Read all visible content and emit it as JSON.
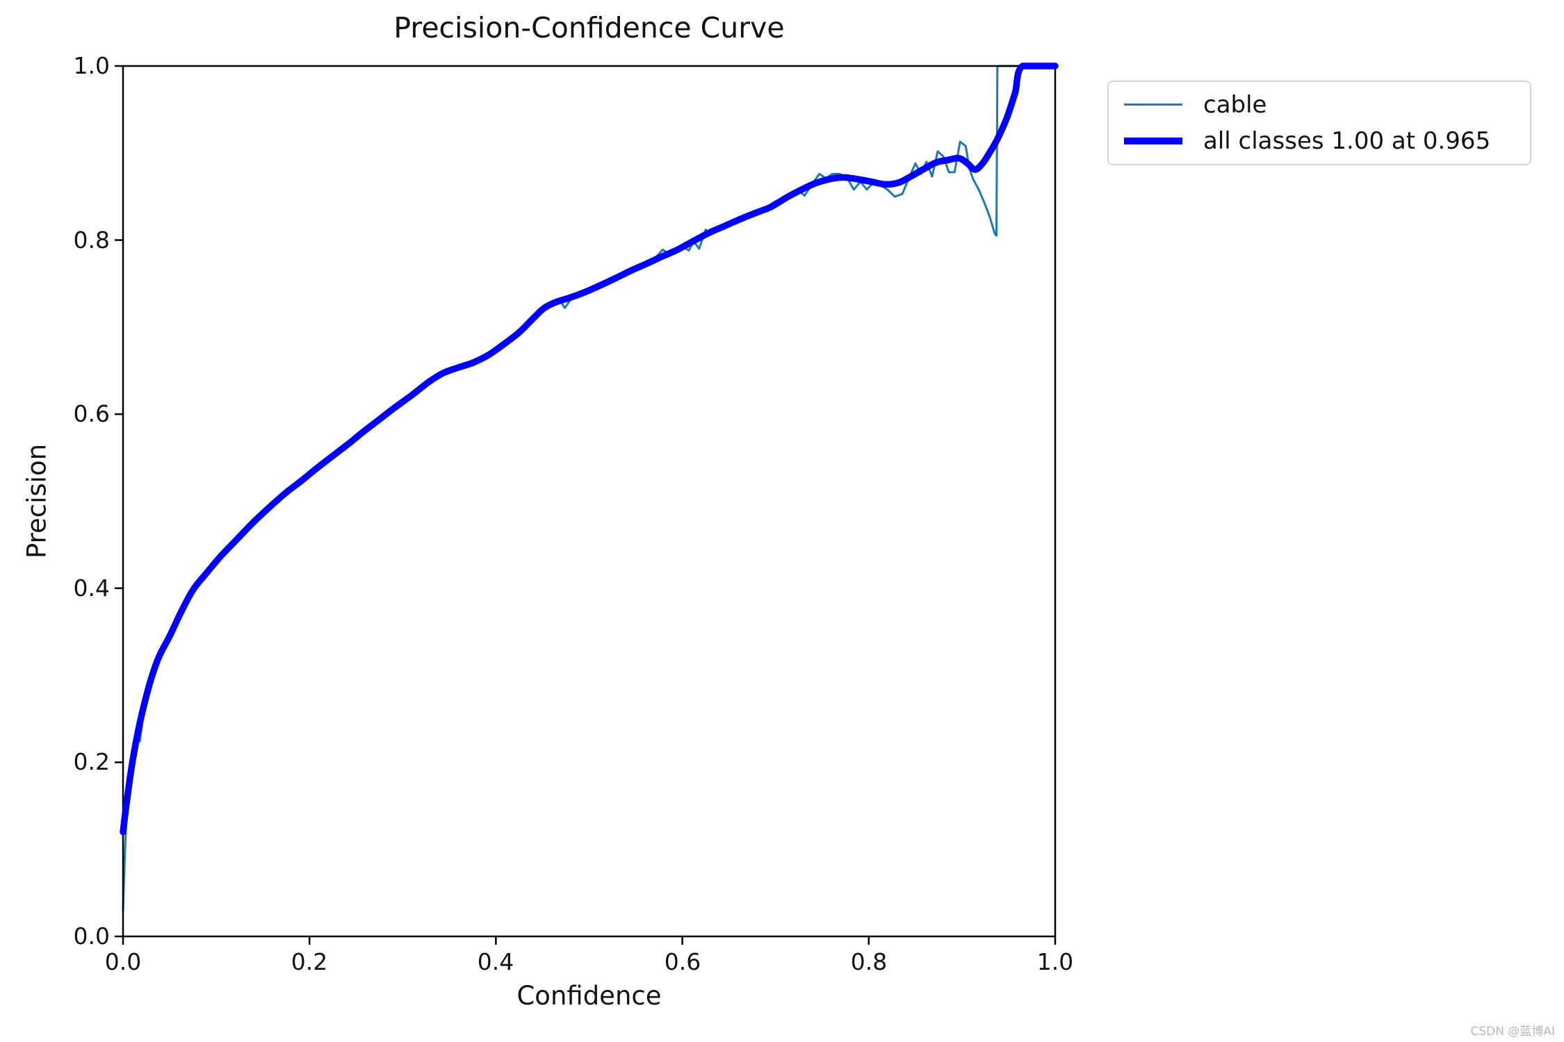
{
  "title": "Precision-Confidence Curve",
  "axes": {
    "xlabel": "Confidence",
    "ylabel": "Precision"
  },
  "legend": {
    "items": [
      {
        "label": "cable",
        "color": "#1f77b4",
        "swatch_thickness": 3
      },
      {
        "label": "all classes 1.00 at 0.965",
        "color": "#0000ff",
        "swatch_thickness": 10
      }
    ]
  },
  "watermark": "CSDN @蓝博AI",
  "chart_data": {
    "type": "line",
    "title": "Precision-Confidence Curve",
    "xlabel": "Confidence",
    "ylabel": "Precision",
    "xlim": [
      0.0,
      1.0
    ],
    "ylim": [
      0.0,
      1.0
    ],
    "grid": false,
    "legend_position": "outside-upper-right",
    "x_tick_labels": [
      "0.0",
      "0.2",
      "0.4",
      "0.6",
      "0.8",
      "1.0"
    ],
    "y_tick_labels": [
      "0.0",
      "0.2",
      "0.4",
      "0.6",
      "0.8",
      "1.0"
    ],
    "x_tick_values": [
      0.0,
      0.2,
      0.4,
      0.6,
      0.8,
      1.0
    ],
    "y_tick_values": [
      0.0,
      0.2,
      0.4,
      0.6,
      0.8,
      1.0
    ],
    "series": [
      {
        "name": "cable",
        "color": "#1f77b4",
        "width": 3,
        "smooth": false,
        "layer": "below-axes",
        "points": [
          [
            0.0,
            0.03
          ],
          [
            0.002,
            0.095
          ],
          [
            0.004,
            0.15
          ],
          [
            0.007,
            0.185
          ],
          [
            0.01,
            0.212
          ],
          [
            0.014,
            0.232
          ],
          [
            0.018,
            0.224
          ],
          [
            0.022,
            0.256
          ],
          [
            0.027,
            0.278
          ],
          [
            0.032,
            0.296
          ],
          [
            0.037,
            0.312
          ],
          [
            0.043,
            0.33
          ],
          [
            0.05,
            0.347
          ],
          [
            0.058,
            0.365
          ],
          [
            0.066,
            0.383
          ],
          [
            0.074,
            0.398
          ],
          [
            0.082,
            0.404
          ],
          [
            0.092,
            0.419
          ],
          [
            0.102,
            0.433
          ],
          [
            0.114,
            0.448
          ],
          [
            0.126,
            0.46
          ],
          [
            0.139,
            0.474
          ],
          [
            0.151,
            0.488
          ],
          [
            0.164,
            0.5
          ],
          [
            0.176,
            0.511
          ],
          [
            0.189,
            0.522
          ],
          [
            0.201,
            0.533
          ],
          [
            0.214,
            0.545
          ],
          [
            0.227,
            0.554
          ],
          [
            0.239,
            0.564
          ],
          [
            0.252,
            0.576
          ],
          [
            0.264,
            0.586
          ],
          [
            0.277,
            0.596
          ],
          [
            0.29,
            0.606
          ],
          [
            0.302,
            0.616
          ],
          [
            0.315,
            0.627
          ],
          [
            0.327,
            0.636
          ],
          [
            0.34,
            0.645
          ],
          [
            0.347,
            0.651
          ],
          [
            0.356,
            0.651
          ],
          [
            0.369,
            0.656
          ],
          [
            0.381,
            0.661
          ],
          [
            0.394,
            0.669
          ],
          [
            0.406,
            0.678
          ],
          [
            0.419,
            0.689
          ],
          [
            0.431,
            0.701
          ],
          [
            0.444,
            0.714
          ],
          [
            0.452,
            0.723
          ],
          [
            0.461,
            0.728
          ],
          [
            0.469,
            0.73
          ],
          [
            0.474,
            0.722
          ],
          [
            0.481,
            0.733
          ],
          [
            0.492,
            0.738
          ],
          [
            0.504,
            0.744
          ],
          [
            0.517,
            0.751
          ],
          [
            0.529,
            0.757
          ],
          [
            0.541,
            0.763
          ],
          [
            0.554,
            0.769
          ],
          [
            0.566,
            0.775
          ],
          [
            0.573,
            0.782
          ],
          [
            0.579,
            0.789
          ],
          [
            0.586,
            0.784
          ],
          [
            0.593,
            0.787
          ],
          [
            0.601,
            0.792
          ],
          [
            0.607,
            0.788
          ],
          [
            0.612,
            0.799
          ],
          [
            0.618,
            0.79
          ],
          [
            0.625,
            0.812
          ],
          [
            0.631,
            0.807
          ],
          [
            0.639,
            0.812
          ],
          [
            0.649,
            0.817
          ],
          [
            0.659,
            0.822
          ],
          [
            0.669,
            0.827
          ],
          [
            0.679,
            0.831
          ],
          [
            0.689,
            0.837
          ],
          [
            0.699,
            0.844
          ],
          [
            0.709,
            0.849
          ],
          [
            0.717,
            0.852
          ],
          [
            0.724,
            0.858
          ],
          [
            0.731,
            0.851
          ],
          [
            0.739,
            0.864
          ],
          [
            0.747,
            0.876
          ],
          [
            0.754,
            0.871
          ],
          [
            0.761,
            0.876
          ],
          [
            0.769,
            0.876
          ],
          [
            0.777,
            0.871
          ],
          [
            0.784,
            0.858
          ],
          [
            0.791,
            0.867
          ],
          [
            0.798,
            0.858
          ],
          [
            0.806,
            0.867
          ],
          [
            0.813,
            0.863
          ],
          [
            0.82,
            0.858
          ],
          [
            0.828,
            0.85
          ],
          [
            0.836,
            0.853
          ],
          [
            0.843,
            0.871
          ],
          [
            0.85,
            0.888
          ],
          [
            0.856,
            0.876
          ],
          [
            0.862,
            0.89
          ],
          [
            0.868,
            0.873
          ],
          [
            0.874,
            0.902
          ],
          [
            0.88,
            0.896
          ],
          [
            0.886,
            0.878
          ],
          [
            0.892,
            0.878
          ],
          [
            0.898,
            0.913
          ],
          [
            0.904,
            0.908
          ],
          [
            0.908,
            0.882
          ],
          [
            0.912,
            0.87
          ],
          [
            0.918,
            0.858
          ],
          [
            0.924,
            0.843
          ],
          [
            0.93,
            0.826
          ],
          [
            0.935,
            0.808
          ],
          [
            0.937,
            0.805
          ],
          [
            0.938,
            1.0
          ],
          [
            1.0,
            1.0
          ]
        ]
      },
      {
        "name": "all classes 1.00 at 0.965",
        "color": "#0000ff",
        "width": 9.5,
        "smooth": true,
        "layer": "above-axes",
        "points": [
          [
            0.0,
            0.12
          ],
          [
            0.004,
            0.155
          ],
          [
            0.01,
            0.2
          ],
          [
            0.018,
            0.245
          ],
          [
            0.028,
            0.288
          ],
          [
            0.038,
            0.32
          ],
          [
            0.05,
            0.345
          ],
          [
            0.062,
            0.372
          ],
          [
            0.075,
            0.398
          ],
          [
            0.09,
            0.418
          ],
          [
            0.105,
            0.437
          ],
          [
            0.122,
            0.456
          ],
          [
            0.14,
            0.476
          ],
          [
            0.158,
            0.494
          ],
          [
            0.175,
            0.51
          ],
          [
            0.192,
            0.524
          ],
          [
            0.208,
            0.538
          ],
          [
            0.225,
            0.552
          ],
          [
            0.242,
            0.566
          ],
          [
            0.258,
            0.58
          ],
          [
            0.275,
            0.594
          ],
          [
            0.292,
            0.608
          ],
          [
            0.31,
            0.622
          ],
          [
            0.328,
            0.637
          ],
          [
            0.343,
            0.647
          ],
          [
            0.358,
            0.653
          ],
          [
            0.375,
            0.659
          ],
          [
            0.392,
            0.668
          ],
          [
            0.408,
            0.68
          ],
          [
            0.425,
            0.694
          ],
          [
            0.44,
            0.71
          ],
          [
            0.452,
            0.722
          ],
          [
            0.465,
            0.729
          ],
          [
            0.48,
            0.734
          ],
          [
            0.495,
            0.74
          ],
          [
            0.51,
            0.747
          ],
          [
            0.528,
            0.756
          ],
          [
            0.545,
            0.765
          ],
          [
            0.562,
            0.773
          ],
          [
            0.578,
            0.781
          ],
          [
            0.595,
            0.789
          ],
          [
            0.612,
            0.799
          ],
          [
            0.628,
            0.808
          ],
          [
            0.645,
            0.816
          ],
          [
            0.662,
            0.824
          ],
          [
            0.678,
            0.831
          ],
          [
            0.695,
            0.838
          ],
          [
            0.712,
            0.849
          ],
          [
            0.728,
            0.858
          ],
          [
            0.742,
            0.865
          ],
          [
            0.758,
            0.87
          ],
          [
            0.772,
            0.872
          ],
          [
            0.788,
            0.87
          ],
          [
            0.803,
            0.867
          ],
          [
            0.818,
            0.864
          ],
          [
            0.832,
            0.866
          ],
          [
            0.845,
            0.873
          ],
          [
            0.858,
            0.881
          ],
          [
            0.872,
            0.889
          ],
          [
            0.885,
            0.892
          ],
          [
            0.897,
            0.894
          ],
          [
            0.906,
            0.888
          ],
          [
            0.914,
            0.881
          ],
          [
            0.922,
            0.888
          ],
          [
            0.93,
            0.901
          ],
          [
            0.938,
            0.916
          ],
          [
            0.948,
            0.94
          ],
          [
            0.957,
            0.969
          ],
          [
            0.965,
            1.0
          ],
          [
            1.0,
            1.0
          ]
        ]
      }
    ],
    "annotations": {
      "best_value": "1.00",
      "best_confidence": "0.965"
    }
  }
}
